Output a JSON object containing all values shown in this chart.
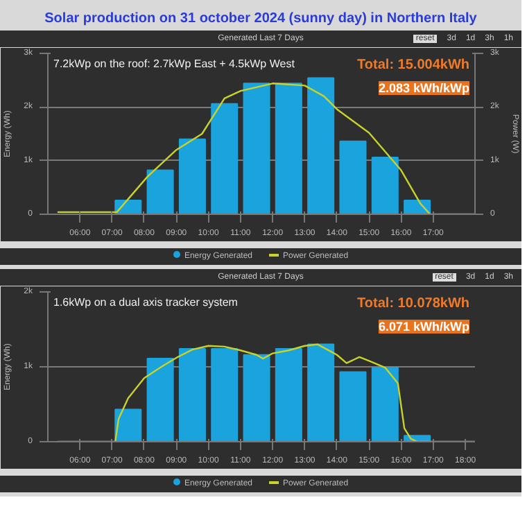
{
  "chart_data": [
    {
      "type": "bar",
      "title": "Solar production on 31 october 2024 (sunny day) in Northern Italy",
      "subtitle": "Generated Last 7 Days",
      "ylabel": "Energy (Wh)",
      "y2label": "Power (W)",
      "annotations": [
        "7.2kWp on the roof: 2.7kWp East + 4.5kWp West",
        "Total: 15.004kWh",
        "2.083 kWh/kWp",
        "reset",
        "3d",
        "1d",
        "3h",
        "1h"
      ],
      "x": [
        7.5,
        8.5,
        9.5,
        10.5,
        11.5,
        12.5,
        13.5,
        14.5,
        15.5,
        16.5
      ],
      "xlim": [
        5.0,
        18.3
      ],
      "xticks": [
        {
          "value": 6,
          "label": "06:00"
        },
        {
          "value": 7,
          "label": "07:00"
        },
        {
          "value": 8,
          "label": "08:00"
        },
        {
          "value": 9,
          "label": "09:00"
        },
        {
          "value": 10,
          "label": "10:00"
        },
        {
          "value": 11,
          "label": "11:00"
        },
        {
          "value": 12,
          "label": "12:00"
        },
        {
          "value": 13,
          "label": "13:00"
        },
        {
          "value": 14,
          "label": "14:00"
        },
        {
          "value": 15,
          "label": "15:00"
        },
        {
          "value": 16,
          "label": "16:00"
        },
        {
          "value": 17,
          "label": "17:00"
        }
      ],
      "ylim": [
        0,
        3000
      ],
      "yticks": [
        0,
        {
          "value": 1000,
          "label": "1k"
        },
        {
          "value": 2000,
          "label": "2k"
        },
        {
          "value": 3000,
          "label": "3k"
        }
      ],
      "y2lim": [
        0,
        3000
      ],
      "y2ticks": [
        0,
        {
          "value": 1000,
          "label": "1k"
        },
        {
          "value": 2000,
          "label": "2k"
        },
        {
          "value": 3000,
          "label": "3k"
        }
      ],
      "grid": "y",
      "legend": "bottom",
      "series": [
        {
          "name": "Energy Generated",
          "color": "#1ba3dd",
          "values": [
            260,
            820,
            1400,
            2060,
            2440,
            2440,
            2540,
            1360,
            1060,
            260
          ]
        },
        {
          "name": "Power Generated",
          "type": "line",
          "axis": "y2",
          "color": "#c8d22a",
          "x": [
            5.3,
            6.0,
            7.15,
            8.1,
            9.0,
            9.8,
            10.5,
            11.0,
            12.0,
            13.0,
            13.6,
            14.0,
            15.0,
            16.0,
            16.6,
            16.9,
            18.3
          ],
          "values": [
            40,
            40,
            40,
            700,
            1200,
            1500,
            2160,
            2300,
            2440,
            2400,
            2200,
            1960,
            1520,
            820,
            200,
            0,
            0
          ]
        }
      ]
    },
    {
      "type": "bar",
      "title": "Generated Last 7 Days",
      "ylabel": "Energy (Wh)",
      "annotations": [
        "1.6kWp on a dual axis tracker system",
        "Total: 10.078kWh",
        "6.071 kWh/kWp",
        "reset",
        "3d",
        "1d",
        "3h"
      ],
      "x": [
        7.5,
        8.5,
        9.5,
        10.5,
        11.5,
        12.5,
        13.5,
        14.5,
        15.5,
        16.5
      ],
      "xlim": [
        5.0,
        18.3
      ],
      "xticks": [
        {
          "value": 6,
          "label": "06:00"
        },
        {
          "value": 7,
          "label": "07:00"
        },
        {
          "value": 8,
          "label": "08:00"
        },
        {
          "value": 9,
          "label": "09:00"
        },
        {
          "value": 10,
          "label": "10:00"
        },
        {
          "value": 11,
          "label": "11:00"
        },
        {
          "value": 12,
          "label": "12:00"
        },
        {
          "value": 13,
          "label": "13:00"
        },
        {
          "value": 14,
          "label": "14:00"
        },
        {
          "value": 15,
          "label": "15:00"
        },
        {
          "value": 16,
          "label": "16:00"
        },
        {
          "value": 17,
          "label": "17:00"
        },
        {
          "value": 18,
          "label": "18:00"
        }
      ],
      "ylim": [
        0,
        2000
      ],
      "yticks": [
        0,
        {
          "value": 1000,
          "label": "1k"
        },
        {
          "value": 2000,
          "label": "2k"
        }
      ],
      "grid": "y",
      "legend": "bottom",
      "series": [
        {
          "name": "Energy Generated",
          "color": "#1ba3dd",
          "values": [
            430,
            1110,
            1240,
            1240,
            1160,
            1240,
            1300,
            930,
            990,
            80
          ]
        },
        {
          "name": "Power Generated",
          "type": "line",
          "color": "#c8d22a",
          "x": [
            5.3,
            7.1,
            7.2,
            7.5,
            8.0,
            8.5,
            9.0,
            9.5,
            10.0,
            10.5,
            11.0,
            11.5,
            11.7,
            12.0,
            12.5,
            13.0,
            13.4,
            14.0,
            14.3,
            14.7,
            15.0,
            15.5,
            15.9,
            16.1,
            16.3,
            16.5,
            18.3
          ],
          "values": [
            0,
            0,
            300,
            580,
            850,
            990,
            1120,
            1230,
            1280,
            1270,
            1220,
            1160,
            1110,
            1180,
            1220,
            1280,
            1300,
            1160,
            1050,
            1130,
            1080,
            990,
            780,
            180,
            40,
            0,
            0
          ]
        }
      ]
    }
  ]
}
